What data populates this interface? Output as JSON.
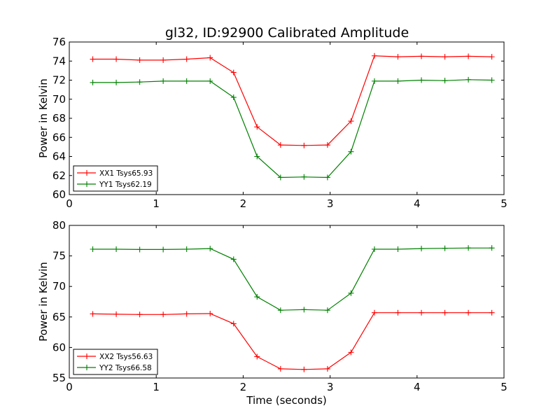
{
  "figure": {
    "title": "gl32, ID:92900 Calibrated Amplitude"
  },
  "chart_data": [
    {
      "type": "line",
      "title": "gl32, ID:92900 Calibrated Amplitude",
      "xlabel": "",
      "ylabel": "Power in Kelvin",
      "xlim": [
        0,
        5
      ],
      "ylim": [
        60,
        76
      ],
      "xticks": [
        0,
        1,
        2,
        3,
        4,
        5
      ],
      "yticks": [
        60,
        62,
        64,
        66,
        68,
        70,
        72,
        74,
        76
      ],
      "grid": false,
      "legend_position": "lower-left",
      "x": [
        0.27,
        0.54,
        0.81,
        1.08,
        1.35,
        1.62,
        1.89,
        2.16,
        2.43,
        2.7,
        2.97,
        3.24,
        3.51,
        3.78,
        4.05,
        4.32,
        4.59,
        4.86
      ],
      "series": [
        {
          "name": "XX1 Tsys65.93",
          "color": "#ff0000",
          "values": [
            74.2,
            74.2,
            74.1,
            74.1,
            74.2,
            74.35,
            72.8,
            67.1,
            65.2,
            65.15,
            65.2,
            67.7,
            74.55,
            74.45,
            74.5,
            74.45,
            74.5,
            74.45
          ]
        },
        {
          "name": "YY1 Tsys62.19",
          "color": "#008000",
          "values": [
            71.75,
            71.75,
            71.8,
            71.9,
            71.9,
            71.9,
            70.2,
            64.0,
            61.8,
            61.85,
            61.8,
            64.5,
            71.9,
            71.9,
            72.0,
            71.95,
            72.05,
            72.0
          ]
        }
      ]
    },
    {
      "type": "line",
      "title": "",
      "xlabel": "Time (seconds)",
      "ylabel": "Power in Kelvin",
      "xlim": [
        0,
        5
      ],
      "ylim": [
        55,
        80
      ],
      "xticks": [
        0,
        1,
        2,
        3,
        4,
        5
      ],
      "yticks": [
        55,
        60,
        65,
        70,
        75,
        80
      ],
      "grid": false,
      "legend_position": "lower-left",
      "x": [
        0.27,
        0.54,
        0.81,
        1.08,
        1.35,
        1.62,
        1.89,
        2.16,
        2.43,
        2.7,
        2.97,
        3.24,
        3.51,
        3.78,
        4.05,
        4.32,
        4.59,
        4.86
      ],
      "series": [
        {
          "name": "XX2 Tsys56.63",
          "color": "#ff0000",
          "values": [
            65.5,
            65.45,
            65.4,
            65.4,
            65.5,
            65.55,
            63.9,
            58.5,
            56.5,
            56.4,
            56.5,
            59.2,
            65.7,
            65.7,
            65.7,
            65.7,
            65.7,
            65.7
          ]
        },
        {
          "name": "YY2 Tsys66.58",
          "color": "#008000",
          "values": [
            76.1,
            76.1,
            76.05,
            76.05,
            76.1,
            76.2,
            74.45,
            68.3,
            66.1,
            66.2,
            66.1,
            68.9,
            76.1,
            76.1,
            76.2,
            76.25,
            76.3,
            76.3
          ]
        }
      ]
    }
  ]
}
